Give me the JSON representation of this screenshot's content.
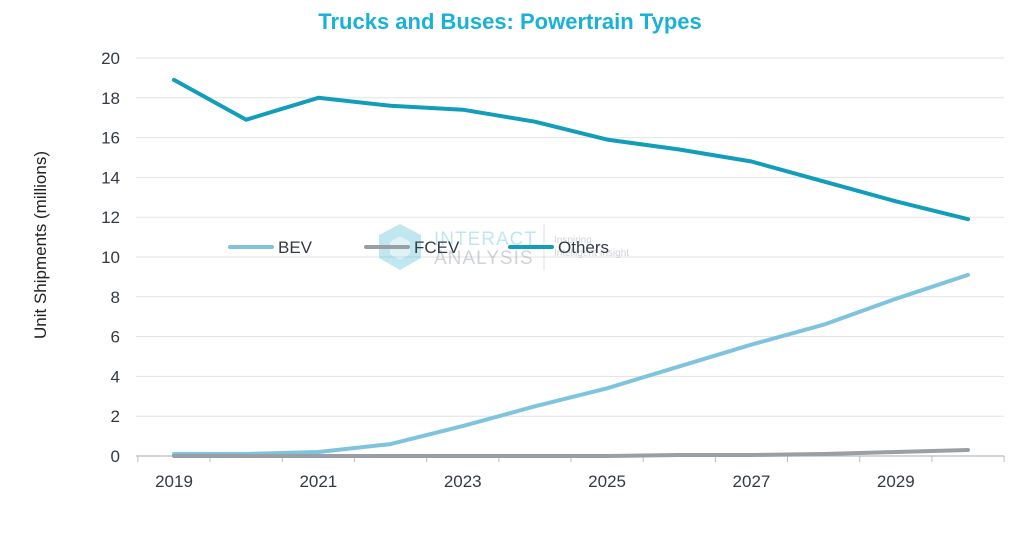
{
  "colors": {
    "title": "#1ab1d6",
    "BEV": "#7fc3de",
    "FCEV": "#9a9fa5",
    "Others": "#129dbb",
    "grid": "#e3e3e3",
    "axis": "#b8bcc0"
  },
  "watermark": {
    "line1": "INTERACT",
    "line2": "ANALYSIS",
    "tagline1": "Inspiring",
    "tagline2": "Intelligent Insight",
    "icon": "hexagon-logo-icon"
  },
  "chart_data": {
    "type": "line",
    "title": "Trucks and Buses: Powertrain Types",
    "ylabel": "Unit Shipments (millions)",
    "xlabel": "",
    "x": [
      2019,
      2020,
      2021,
      2022,
      2023,
      2024,
      2025,
      2026,
      2027,
      2028,
      2029,
      2030
    ],
    "xticks": [
      "2019",
      "2021",
      "2023",
      "2025",
      "2027",
      "2029"
    ],
    "yticks": [
      "0",
      "2",
      "4",
      "6",
      "8",
      "10",
      "12",
      "14",
      "16",
      "18",
      "20"
    ],
    "ylim": [
      0,
      20
    ],
    "grid": true,
    "legend_position": "center, over plot",
    "series": [
      {
        "name": "BEV",
        "values": [
          0.1,
          0.1,
          0.2,
          0.6,
          1.5,
          2.5,
          3.4,
          4.5,
          5.6,
          6.6,
          7.9,
          9.1
        ]
      },
      {
        "name": "FCEV",
        "values": [
          0.0,
          0.0,
          0.0,
          0.0,
          0.0,
          0.0,
          0.0,
          0.05,
          0.05,
          0.1,
          0.2,
          0.3
        ]
      },
      {
        "name": "Others",
        "values": [
          18.9,
          16.9,
          18.0,
          17.6,
          17.4,
          16.8,
          15.9,
          15.4,
          14.8,
          13.8,
          12.8,
          11.9
        ]
      }
    ]
  }
}
